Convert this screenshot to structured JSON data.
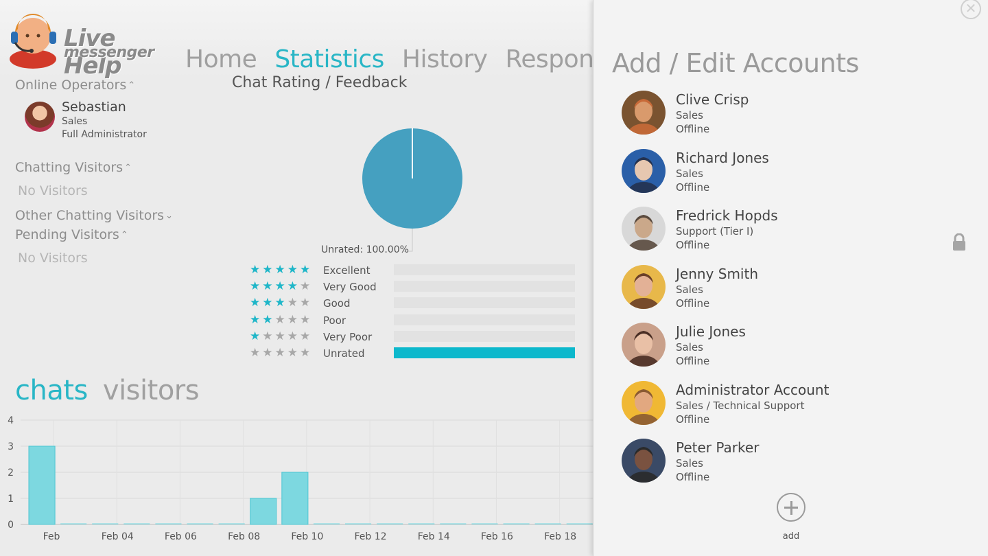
{
  "app": {
    "logo_line1": "Live Help",
    "logo_line2": "messenger"
  },
  "nav": {
    "items": [
      "Home",
      "Statistics",
      "History",
      "Respons"
    ],
    "active": "Statistics"
  },
  "sidebar": {
    "online_operators": {
      "label": "Online Operators",
      "expanded": true,
      "operators": [
        {
          "name": "Sebastian",
          "department": "Sales",
          "role": "Full Administrator"
        }
      ]
    },
    "chatting_visitors": {
      "label": "Chatting Visitors",
      "expanded": true,
      "empty_text": "No Visitors"
    },
    "other_chatting_visitors": {
      "label": "Other Chatting Visitors",
      "expanded": false
    },
    "pending_visitors": {
      "label": "Pending Visitors",
      "expanded": true,
      "empty_text": "No Visitors"
    }
  },
  "rating_chart": {
    "title": "Chat Rating / Feedback",
    "pie_label": "Unrated: 100.00%",
    "pie_color": "#45a0c0",
    "ratings": [
      {
        "label": "Excellent",
        "stars": 5,
        "fraction": 0
      },
      {
        "label": "Very Good",
        "stars": 4,
        "fraction": 0
      },
      {
        "label": "Good",
        "stars": 3,
        "fraction": 0
      },
      {
        "label": "Poor",
        "stars": 2,
        "fraction": 0
      },
      {
        "label": "Very Poor",
        "stars": 1,
        "fraction": 0
      },
      {
        "label": "Unrated",
        "stars": 0,
        "fraction": 1
      }
    ]
  },
  "bottom_tabs": {
    "items": [
      "chats",
      "visitors"
    ],
    "active": "chats"
  },
  "chart_data": {
    "type": "bar",
    "series_color": "#7dd8e0",
    "ylim": [
      0,
      4
    ],
    "yticks": [
      0,
      1,
      2,
      3,
      4
    ],
    "xtick_labels": [
      "Feb",
      "Feb 04",
      "Feb 06",
      "Feb 08",
      "Feb 10",
      "Feb 12",
      "Feb 14",
      "Feb 16",
      "Feb 18"
    ],
    "values": [
      3,
      0,
      0,
      0,
      0,
      0,
      0,
      1,
      2,
      0,
      0,
      0,
      0,
      0,
      0,
      0,
      0,
      0,
      0
    ]
  },
  "panel": {
    "title": "Add / Edit Accounts",
    "close_icon": "close-icon",
    "lock_icon": "lock-icon",
    "accounts": [
      {
        "name": "Clive Crisp",
        "department": "Sales",
        "status": "Offline",
        "colors": [
          "#7a5330",
          "#d99a6c",
          "#c86a38"
        ]
      },
      {
        "name": "Richard Jones",
        "department": "Sales",
        "status": "Offline",
        "colors": [
          "#2a5fa8",
          "#e6c7b0",
          "#24324f"
        ]
      },
      {
        "name": "Fredrick Hopds",
        "department": "Support (Tier I)",
        "status": "Offline",
        "colors": [
          "#d8d8d8",
          "#caa88a",
          "#5a4a3e"
        ]
      },
      {
        "name": "Jenny Smith",
        "department": "Sales",
        "status": "Offline",
        "colors": [
          "#e8b84a",
          "#e3b196",
          "#6a3f28"
        ]
      },
      {
        "name": "Julie Jones",
        "department": "Sales",
        "status": "Offline",
        "colors": [
          "#c9a08a",
          "#e9c0a6",
          "#4a2e24"
        ]
      },
      {
        "name": "Administrator Account",
        "department": "Sales / Technical Support",
        "status": "Offline",
        "colors": [
          "#f0b834",
          "#e2a880",
          "#8a5a32"
        ]
      },
      {
        "name": "Peter Parker",
        "department": "Sales",
        "status": "Offline",
        "colors": [
          "#3a4a66",
          "#7a5240",
          "#2a2a2a"
        ]
      }
    ],
    "add_label": "add"
  }
}
